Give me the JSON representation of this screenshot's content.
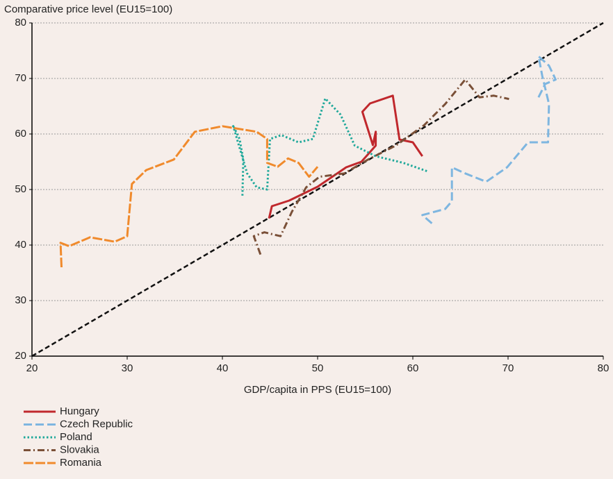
{
  "chart_data": {
    "type": "line",
    "y_label": "Comparative price level (EU15=100)",
    "x_label": "GDP/capita in PPS (EU15=100)",
    "xlim": [
      20,
      80
    ],
    "ylim": [
      20,
      80
    ],
    "xticks": [
      20,
      30,
      40,
      50,
      60,
      70,
      80
    ],
    "yticks": [
      20,
      30,
      40,
      50,
      60,
      70,
      80
    ],
    "grid": true,
    "diagonal": true,
    "legend": "bottom-left",
    "series": [
      {
        "name": "Hungary",
        "color": "#c0282d",
        "dash": "solid",
        "x": [
          44.9,
          45.2,
          47,
          50,
          53,
          54.6,
          56.1,
          56.1,
          55.8,
          54.7,
          55.5,
          57.9,
          58.6,
          60,
          61
        ],
        "values": [
          44.8,
          47,
          48,
          50.5,
          54,
          55,
          57.9,
          60.4,
          58,
          64,
          65.5,
          66.9,
          59,
          58.5,
          56
        ]
      },
      {
        "name": "Czech Republic",
        "color": "#7eb6e0",
        "dash": "dashed",
        "x": [
          62,
          61,
          63.4,
          64.1,
          64.1,
          65.5,
          67.7,
          69.9,
          72.1,
          74.2,
          74.3,
          73.6,
          73.2,
          74.3,
          75,
          73.9,
          73.2
        ],
        "values": [
          43.9,
          45.4,
          46.5,
          47.9,
          54,
          52.9,
          51.4,
          54,
          58.5,
          58.5,
          65.4,
          70.4,
          74,
          72.3,
          69.8,
          69,
          66.6
        ]
      },
      {
        "name": "Poland",
        "color": "#1fa89a",
        "dash": "dotted",
        "x": [
          42.1,
          42.2,
          41.8,
          41.1,
          42.6,
          43.6,
          44.7,
          45,
          46.2,
          48,
          49.5,
          50.8,
          52.4,
          53.9,
          56.1,
          59,
          61.5
        ],
        "values": [
          48.9,
          55.4,
          59.1,
          61.6,
          52.9,
          50.4,
          50,
          59.1,
          59.8,
          58.5,
          59.1,
          66.4,
          63.5,
          57.9,
          56,
          54.8,
          53.3
        ]
      },
      {
        "name": "Slovakia",
        "color": "#7a5038",
        "dash": "dashdot",
        "x": [
          44,
          43.3,
          44.4,
          46.1,
          47.3,
          48.8,
          50.2,
          52.8,
          55.3,
          58.2,
          61.2,
          63.4,
          65.5,
          67,
          68.5,
          70.1
        ],
        "values": [
          38.3,
          41.6,
          42.3,
          41.6,
          46,
          50.4,
          52.3,
          52.9,
          55.4,
          57.9,
          61.6,
          65.4,
          69.8,
          66.6,
          66.9,
          66.3
        ]
      },
      {
        "name": "Romania",
        "color": "#f08a2c",
        "dash": "longdash",
        "x": [
          23.1,
          23,
          23.9,
          26.1,
          28.7,
          30,
          30.5,
          32,
          34.9,
          37.1,
          40,
          43.6,
          44.7,
          44.7,
          45.8,
          46.9,
          48,
          49.1,
          50
        ],
        "values": [
          36,
          40.4,
          39.8,
          41.4,
          40.6,
          41.6,
          51,
          53.5,
          55.4,
          60.4,
          61.4,
          60.4,
          59.1,
          54.8,
          54.1,
          55.6,
          54.8,
          52.3,
          54.1
        ]
      }
    ]
  }
}
